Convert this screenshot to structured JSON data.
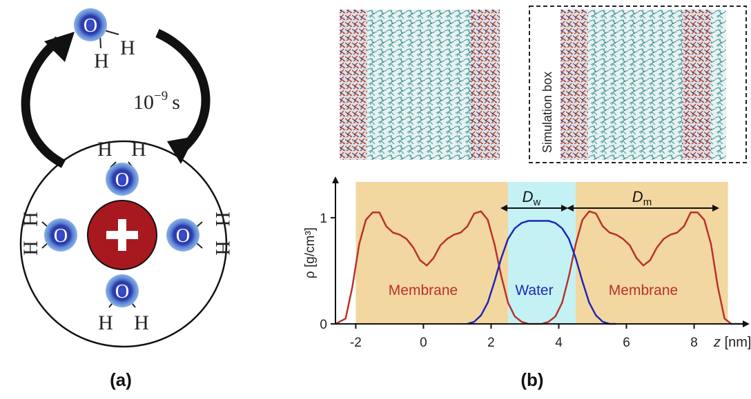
{
  "panel_a": {
    "label": "(a)",
    "time_label_base": "10",
    "time_label_exp": "−9",
    "time_label_unit": "s",
    "hydrogen": "H",
    "oxygen": "O",
    "cation_symbol": "+"
  },
  "panel_b": {
    "label": "(b)",
    "simulation_box_label": "Simulation box",
    "dw_label": "D",
    "dw_sub": "w",
    "dm_label": "D",
    "dm_sub": "m",
    "region_labels": {
      "membrane_left": "Membrane",
      "water": "Water",
      "membrane_right": "Membrane"
    }
  },
  "chart_data": {
    "type": "line",
    "ylabel": "ρ [g/cm³]",
    "xlabel": "z [nm]",
    "xlabel_var": "z",
    "xlabel_unit": "[nm]",
    "xlim": [
      -2.6,
      9.6
    ],
    "ylim": [
      0,
      1.35
    ],
    "x_ticks": [
      -2,
      0,
      2,
      4,
      6,
      8
    ],
    "x_tick_labels": [
      "-2",
      "0",
      "2",
      "4",
      "6"
    ],
    "x_tick_label_last": "8",
    "y_ticks": [
      0,
      1
    ],
    "y_tick_labels": [
      "0",
      "1"
    ],
    "bands": [
      {
        "name": "membrane",
        "x0": -2.0,
        "x1": 2.5,
        "color": "#f2d7a0"
      },
      {
        "name": "water",
        "x0": 2.5,
        "x1": 4.5,
        "color": "#c4f2f4"
      },
      {
        "name": "membrane",
        "x0": 4.5,
        "x1": 9.0,
        "color": "#f2d7a0"
      }
    ],
    "series": [
      {
        "color": "#b8312c",
        "x": [
          -2.6,
          -2.3,
          -2.1,
          -1.9,
          -1.7,
          -1.5,
          -1.3,
          -1.1,
          -0.9,
          -0.7,
          -0.5,
          -0.3,
          -0.1,
          0.1,
          0.3,
          0.5,
          0.7,
          0.9,
          1.1,
          1.3,
          1.5,
          1.7,
          1.9,
          2.1,
          2.3,
          2.5,
          2.7,
          2.9,
          3.1,
          3.3,
          3.5,
          3.7,
          3.9,
          4.1,
          4.3,
          4.5,
          4.7,
          4.9,
          5.1,
          5.3,
          5.5,
          5.7,
          5.9,
          6.1,
          6.3,
          6.5,
          6.7,
          6.9,
          7.1,
          7.3,
          7.5,
          7.7,
          7.9,
          8.1,
          8.3,
          8.5,
          8.7,
          8.9,
          9.1,
          9.3,
          9.6
        ],
        "y": [
          0.0,
          0.05,
          0.35,
          0.75,
          0.98,
          1.05,
          1.05,
          0.92,
          0.86,
          0.84,
          0.8,
          0.72,
          0.6,
          0.55,
          0.62,
          0.74,
          0.8,
          0.84,
          0.86,
          0.92,
          1.04,
          1.06,
          0.98,
          0.75,
          0.45,
          0.2,
          0.07,
          0.02,
          0.0,
          0.0,
          0.0,
          0.02,
          0.07,
          0.2,
          0.45,
          0.75,
          0.98,
          1.06,
          1.04,
          0.92,
          0.86,
          0.84,
          0.8,
          0.74,
          0.62,
          0.55,
          0.6,
          0.72,
          0.8,
          0.84,
          0.86,
          0.92,
          1.05,
          1.05,
          0.98,
          0.75,
          0.35,
          0.05,
          0.0,
          0.0,
          0.0
        ]
      },
      {
        "color": "#1f25b8",
        "x": [
          1.3,
          1.5,
          1.7,
          1.9,
          2.1,
          2.3,
          2.5,
          2.7,
          2.9,
          3.1,
          3.3,
          3.5,
          3.7,
          3.9,
          4.1,
          4.3,
          4.5,
          4.7,
          4.9,
          5.1,
          5.3,
          5.5,
          5.7
        ],
        "y": [
          0.0,
          0.02,
          0.08,
          0.2,
          0.4,
          0.62,
          0.8,
          0.9,
          0.95,
          0.97,
          0.97,
          0.97,
          0.97,
          0.95,
          0.9,
          0.8,
          0.62,
          0.4,
          0.2,
          0.08,
          0.02,
          0.0,
          0.0
        ]
      }
    ]
  }
}
